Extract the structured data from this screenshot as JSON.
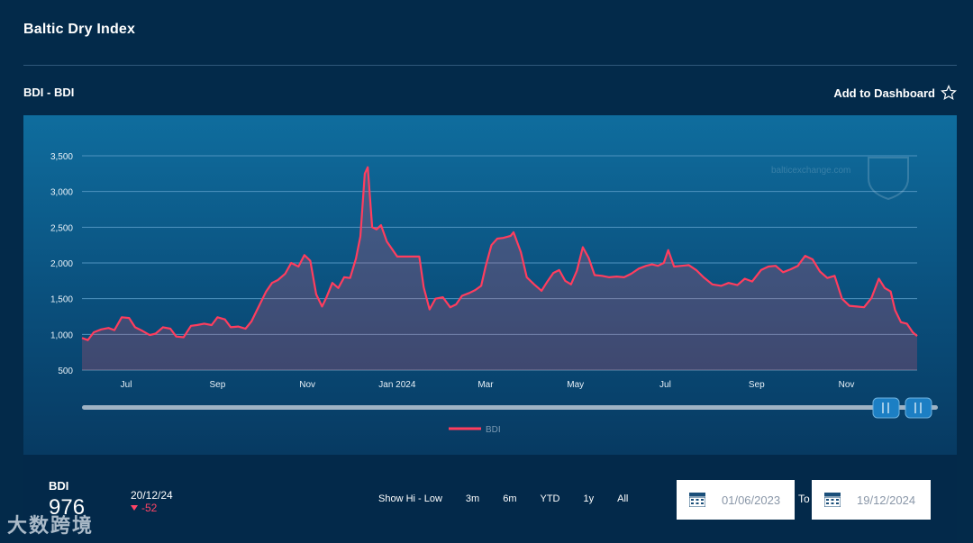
{
  "page": {
    "title": "Baltic Dry Index"
  },
  "chart_header": {
    "subtitle": "BDI - BDI",
    "add_dashboard_label": "Add to Dashboard"
  },
  "chart_data": {
    "type": "area",
    "x_labels": [
      "Jul",
      "Sep",
      "Nov",
      "Jan 2024",
      "Mar",
      "May",
      "Jul",
      "Sep",
      "Nov"
    ],
    "y_ticks": [
      500,
      1000,
      1500,
      2000,
      2500,
      3000,
      3500
    ],
    "y_tick_labels": [
      "500",
      "1,000",
      "1,500",
      "2,000",
      "2,500",
      "3,000",
      "3,500"
    ],
    "ylim": [
      500,
      3500
    ],
    "x_start": "2023-06-01",
    "x_end": "2024-12-19",
    "grid": true,
    "series": [
      {
        "name": "BDI",
        "color": "#ff3d5e",
        "points": [
          [
            "2023-06-01",
            950
          ],
          [
            "2023-06-05",
            920
          ],
          [
            "2023-06-09",
            1030
          ],
          [
            "2023-06-14",
            1070
          ],
          [
            "2023-06-19",
            1090
          ],
          [
            "2023-06-23",
            1060
          ],
          [
            "2023-06-28",
            1240
          ],
          [
            "2023-07-03",
            1230
          ],
          [
            "2023-07-07",
            1100
          ],
          [
            "2023-07-12",
            1050
          ],
          [
            "2023-07-17",
            990
          ],
          [
            "2023-07-21",
            1010
          ],
          [
            "2023-07-26",
            1100
          ],
          [
            "2023-07-31",
            1080
          ],
          [
            "2023-08-04",
            970
          ],
          [
            "2023-08-09",
            960
          ],
          [
            "2023-08-14",
            1120
          ],
          [
            "2023-08-18",
            1130
          ],
          [
            "2023-08-23",
            1150
          ],
          [
            "2023-08-28",
            1130
          ],
          [
            "2023-09-01",
            1240
          ],
          [
            "2023-09-06",
            1210
          ],
          [
            "2023-09-10",
            1100
          ],
          [
            "2023-09-15",
            1110
          ],
          [
            "2023-09-20",
            1080
          ],
          [
            "2023-09-24",
            1180
          ],
          [
            "2023-09-29",
            1390
          ],
          [
            "2023-10-04",
            1600
          ],
          [
            "2023-10-08",
            1720
          ],
          [
            "2023-10-12",
            1760
          ],
          [
            "2023-10-17",
            1850
          ],
          [
            "2023-10-21",
            2000
          ],
          [
            "2023-10-26",
            1950
          ],
          [
            "2023-10-30",
            2110
          ],
          [
            "2023-11-03",
            2030
          ],
          [
            "2023-11-07",
            1560
          ],
          [
            "2023-11-11",
            1390
          ],
          [
            "2023-11-14",
            1520
          ],
          [
            "2023-11-18",
            1720
          ],
          [
            "2023-11-22",
            1650
          ],
          [
            "2023-11-26",
            1800
          ],
          [
            "2023-11-30",
            1790
          ],
          [
            "2023-12-04",
            2060
          ],
          [
            "2023-12-07",
            2370
          ],
          [
            "2023-12-10",
            3250
          ],
          [
            "2023-12-12",
            3340
          ],
          [
            "2023-12-15",
            2500
          ],
          [
            "2023-12-18",
            2470
          ],
          [
            "2023-12-21",
            2530
          ],
          [
            "2023-12-25",
            2300
          ],
          [
            "2024-01-01",
            2090
          ],
          [
            "2024-01-08",
            2090
          ],
          [
            "2024-01-12",
            2090
          ],
          [
            "2024-01-16",
            2090
          ],
          [
            "2024-01-19",
            1660
          ],
          [
            "2024-01-23",
            1350
          ],
          [
            "2024-01-27",
            1500
          ],
          [
            "2024-02-01",
            1520
          ],
          [
            "2024-02-06",
            1380
          ],
          [
            "2024-02-10",
            1420
          ],
          [
            "2024-02-14",
            1540
          ],
          [
            "2024-02-19",
            1580
          ],
          [
            "2024-02-23",
            1620
          ],
          [
            "2024-02-27",
            1680
          ],
          [
            "2024-03-01",
            1950
          ],
          [
            "2024-03-05",
            2250
          ],
          [
            "2024-03-09",
            2340
          ],
          [
            "2024-03-13",
            2350
          ],
          [
            "2024-03-18",
            2380
          ],
          [
            "2024-03-20",
            2430
          ],
          [
            "2024-03-25",
            2150
          ],
          [
            "2024-03-29",
            1800
          ],
          [
            "2024-04-03",
            1700
          ],
          [
            "2024-04-08",
            1610
          ],
          [
            "2024-04-12",
            1740
          ],
          [
            "2024-04-16",
            1860
          ],
          [
            "2024-04-20",
            1900
          ],
          [
            "2024-04-24",
            1750
          ],
          [
            "2024-04-28",
            1700
          ],
          [
            "2024-05-02",
            1890
          ],
          [
            "2024-05-06",
            2220
          ],
          [
            "2024-05-10",
            2070
          ],
          [
            "2024-05-14",
            1830
          ],
          [
            "2024-05-19",
            1820
          ],
          [
            "2024-05-24",
            1800
          ],
          [
            "2024-05-29",
            1810
          ],
          [
            "2024-06-03",
            1800
          ],
          [
            "2024-06-08",
            1850
          ],
          [
            "2024-06-13",
            1920
          ],
          [
            "2024-06-18",
            1960
          ],
          [
            "2024-06-22",
            1980
          ],
          [
            "2024-06-26",
            1960
          ],
          [
            "2024-06-30",
            2000
          ],
          [
            "2024-07-03",
            2180
          ],
          [
            "2024-07-07",
            1950
          ],
          [
            "2024-07-12",
            1960
          ],
          [
            "2024-07-17",
            1970
          ],
          [
            "2024-07-22",
            1900
          ],
          [
            "2024-07-27",
            1800
          ],
          [
            "2024-08-02",
            1700
          ],
          [
            "2024-08-08",
            1680
          ],
          [
            "2024-08-13",
            1720
          ],
          [
            "2024-08-19",
            1690
          ],
          [
            "2024-08-24",
            1780
          ],
          [
            "2024-08-29",
            1740
          ],
          [
            "2024-09-04",
            1900
          ],
          [
            "2024-09-09",
            1950
          ],
          [
            "2024-09-14",
            1960
          ],
          [
            "2024-09-19",
            1870
          ],
          [
            "2024-09-24",
            1910
          ],
          [
            "2024-09-29",
            1960
          ],
          [
            "2024-10-04",
            2100
          ],
          [
            "2024-10-09",
            2050
          ],
          [
            "2024-10-14",
            1880
          ],
          [
            "2024-10-19",
            1790
          ],
          [
            "2024-10-24",
            1820
          ],
          [
            "2024-10-29",
            1500
          ],
          [
            "2024-11-03",
            1400
          ],
          [
            "2024-11-08",
            1390
          ],
          [
            "2024-11-13",
            1380
          ],
          [
            "2024-11-18",
            1510
          ],
          [
            "2024-11-23",
            1780
          ],
          [
            "2024-11-27",
            1650
          ],
          [
            "2024-12-01",
            1600
          ],
          [
            "2024-12-04",
            1340
          ],
          [
            "2024-12-08",
            1170
          ],
          [
            "2024-12-12",
            1150
          ],
          [
            "2024-12-16",
            1030
          ],
          [
            "2024-12-19",
            976
          ]
        ]
      }
    ],
    "x_tick_dates": [
      "2023-07-01",
      "2023-09-01",
      "2023-11-01",
      "2024-01-01",
      "2024-03-01",
      "2024-05-01",
      "2024-07-01",
      "2024-09-01",
      "2024-11-01"
    ],
    "watermark": "balticexchange.com",
    "legend_position": "bottom-center"
  },
  "navigator": {
    "handle_left_icon": "pause-bars-icon",
    "handle_right_icon": "pause-bars-icon"
  },
  "summary": {
    "label": "BDI",
    "value": "976",
    "date": "20/12/24",
    "change": "-52",
    "change_color": "#ff4466"
  },
  "range_buttons": [
    "Show Hi - Low",
    "3m",
    "6m",
    "YTD",
    "1y",
    "All"
  ],
  "date_range": {
    "from": "01/06/2023",
    "to_label": "To",
    "to": "19/12/2024"
  },
  "brand_watermark": "大数跨境"
}
